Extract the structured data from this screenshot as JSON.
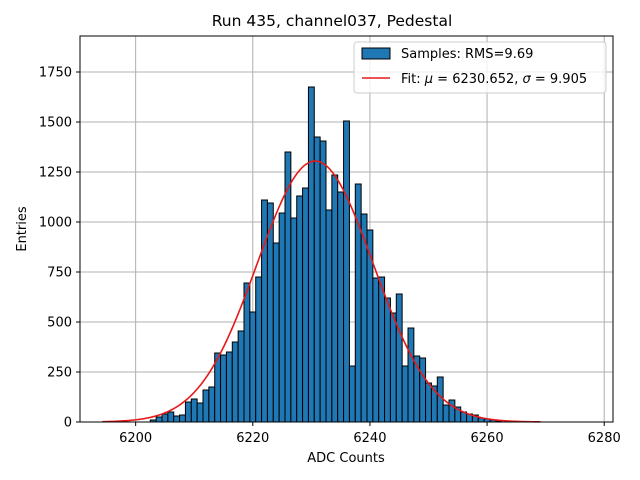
{
  "chart_data": {
    "type": "bar",
    "title": "Run 435, channel037, Pedestal",
    "xlabel": "ADC Counts",
    "ylabel": "Entries",
    "xlim": [
      6190.5,
      6281.5
    ],
    "ylim": [
      0,
      1930
    ],
    "xticks": [
      6200,
      6220,
      6240,
      6260,
      6280
    ],
    "yticks": [
      0,
      250,
      500,
      750,
      1000,
      1250,
      1500,
      1750
    ],
    "grid": true,
    "legend_position": "top-right",
    "bin_width": 1,
    "bins": {
      "x": [
        6203,
        6204,
        6205,
        6206,
        6207,
        6208,
        6209,
        6210,
        6211,
        6212,
        6213,
        6214,
        6215,
        6216,
        6217,
        6218,
        6219,
        6220,
        6221,
        6222,
        6223,
        6224,
        6225,
        6226,
        6227,
        6228,
        6229,
        6230,
        6231,
        6232,
        6233,
        6234,
        6235,
        6236,
        6237,
        6238,
        6239,
        6240,
        6241,
        6242,
        6243,
        6244,
        6245,
        6246,
        6247,
        6248,
        6249,
        6250,
        6251,
        6252,
        6253,
        6254,
        6255,
        6256,
        6257,
        6258,
        6259,
        6260,
        6261,
        6262
      ],
      "values": [
        10,
        25,
        40,
        50,
        30,
        35,
        100,
        115,
        95,
        160,
        175,
        345,
        335,
        350,
        400,
        455,
        695,
        550,
        725,
        1110,
        1095,
        895,
        1045,
        1350,
        1020,
        1130,
        1170,
        1675,
        1425,
        1405,
        1060,
        1235,
        1150,
        1505,
        280,
        1190,
        1040,
        960,
        720,
        725,
        620,
        545,
        640,
        280,
        470,
        330,
        320,
        195,
        180,
        225,
        85,
        110,
        75,
        50,
        40,
        35,
        20,
        15,
        10,
        5
      ]
    },
    "fit": {
      "mu": 6230.652,
      "sigma": 9.905,
      "peak": 1305,
      "x_range": [
        6194.3,
        6269.1
      ]
    },
    "colors": {
      "bar_fill": "#1f77b4",
      "bar_edge": "#000000",
      "fit_line": "#e6191a",
      "grid": "#b0b0b0"
    }
  },
  "legend": {
    "samples_label": "Samples: RMS=9.69",
    "fit_label_prefix": "Fit: ",
    "mu_symbol": "μ",
    "fit_label_mid": " = 6230.652, ",
    "sigma_symbol": "σ",
    "fit_label_end": " = 9.905"
  }
}
